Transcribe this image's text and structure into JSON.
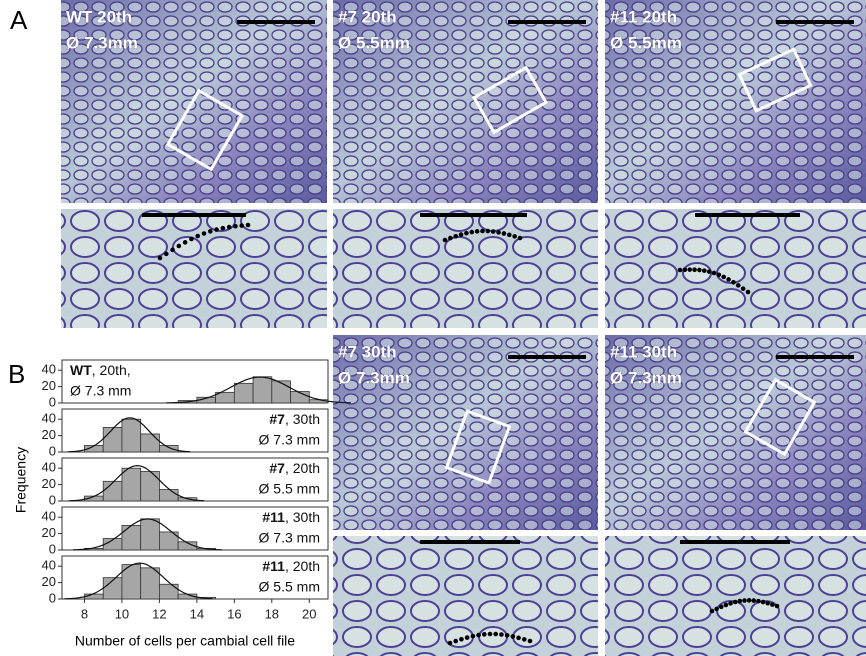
{
  "panel_labels": [
    "A",
    "B"
  ],
  "micrographs": [
    {
      "lines": [
        "WT 20th",
        "Ø 7.3mm"
      ]
    },
    {
      "lines": [
        "#7 20th",
        "Ø 5.5mm"
      ]
    },
    {
      "lines": [
        "#11 20th",
        "Ø 5.5mm"
      ]
    },
    {
      "lines": [
        "#7 30th",
        "Ø 7.3mm"
      ]
    },
    {
      "lines": [
        "#11 30th",
        "Ø 7.3mm"
      ]
    }
  ],
  "chart_data": {
    "type": "histogram",
    "y_label": "Frequency",
    "x_label": "Number of cells per cambial cell file",
    "xlim": [
      6.8,
      21
    ],
    "xticks": [
      8,
      10,
      12,
      14,
      16,
      18,
      20
    ],
    "ylim": [
      0,
      50
    ],
    "yticks": [
      0,
      20,
      40
    ],
    "color": "#a6a6a6",
    "panels": [
      {
        "name_bold": "WT",
        "name_rest": ", 20th,",
        "diameter": "Ø 7.3 mm",
        "bins": [
          13,
          14,
          15,
          16,
          17,
          18,
          19,
          20,
          21
        ],
        "counts": [
          3,
          7,
          13,
          24,
          32,
          27,
          14,
          4
        ]
      },
      {
        "name_bold": "#7",
        "name_rest": ", 30th",
        "diameter": "Ø 7.3 mm",
        "bins": [
          8,
          9,
          10,
          11,
          12,
          13
        ],
        "counts": [
          8,
          30,
          40,
          22,
          8
        ]
      },
      {
        "name_bold": "#7",
        "name_rest": ", 20th",
        "diameter": "Ø 5.5 mm",
        "bins": [
          8,
          9,
          10,
          11,
          12,
          13,
          14
        ],
        "counts": [
          6,
          24,
          40,
          36,
          14,
          4
        ]
      },
      {
        "name_bold": "#11",
        "name_rest": ", 30th",
        "diameter": "Ø 7.3 mm",
        "bins": [
          8,
          9,
          10,
          11,
          12,
          13,
          14,
          15
        ],
        "counts": [
          2,
          14,
          30,
          38,
          22,
          10,
          2
        ]
      },
      {
        "name_bold": "#11",
        "name_rest": ", 20th",
        "diameter": "Ø 5.5 mm",
        "bins": [
          8,
          9,
          10,
          11,
          12,
          13,
          14,
          15
        ],
        "counts": [
          6,
          26,
          42,
          38,
          18,
          6,
          2
        ]
      }
    ]
  }
}
